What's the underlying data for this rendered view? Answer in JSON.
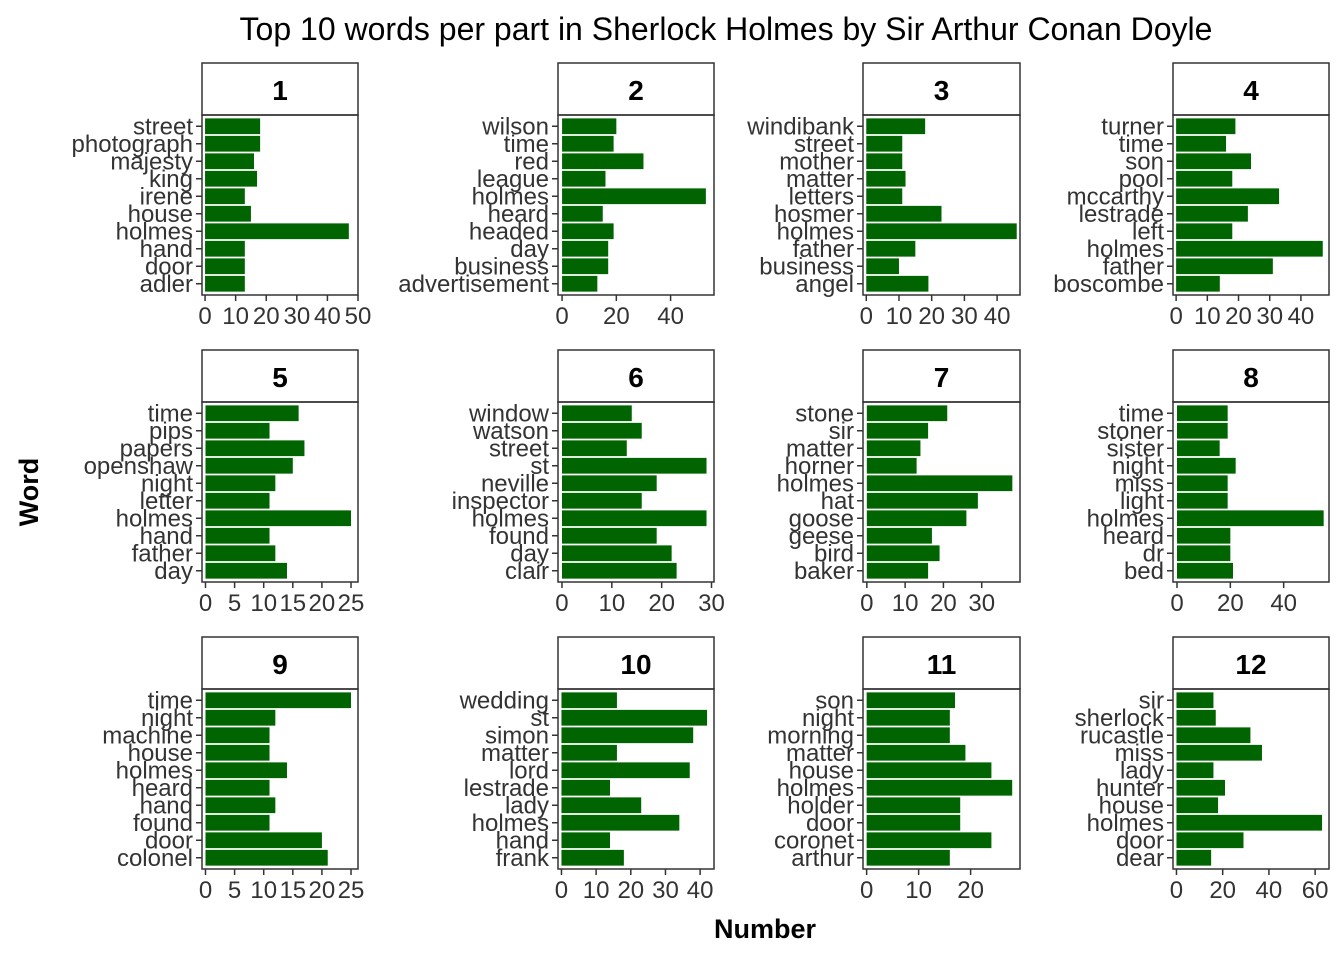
{
  "chart_data": {
    "type": "bar",
    "orientation": "horizontal",
    "facet_layout": "3 rows x 4 columns",
    "title": "Top 10 words per part in Sherlock Holmes by Sir Arthur Conan Doyle",
    "xlabel": "Number",
    "ylabel": "Word",
    "bar_color": "#006400",
    "grid": false,
    "panels": [
      {
        "part": "1",
        "xticks": [
          0,
          10,
          20,
          30,
          40,
          50
        ],
        "xlim": [
          -1,
          50
        ],
        "words": [
          "street",
          "photograph",
          "majesty",
          "king",
          "irene",
          "house",
          "holmes",
          "hand",
          "door",
          "adler"
        ],
        "values": [
          18,
          18,
          16,
          17,
          13,
          15,
          47,
          13,
          13,
          13
        ]
      },
      {
        "part": "2",
        "xticks": [
          0,
          20,
          40
        ],
        "xlim": [
          -1.5,
          56
        ],
        "words": [
          "wilson",
          "time",
          "red",
          "league",
          "holmes",
          "heard",
          "headed",
          "day",
          "business",
          "advertisement"
        ],
        "values": [
          20,
          19,
          30,
          16,
          53,
          15,
          19,
          17,
          17,
          13
        ]
      },
      {
        "part": "3",
        "xticks": [
          0,
          10,
          20,
          30,
          40
        ],
        "xlim": [
          -1,
          47
        ],
        "words": [
          "windibank",
          "street",
          "mother",
          "matter",
          "letters",
          "hosmer",
          "holmes",
          "father",
          "business",
          "angel"
        ],
        "values": [
          18,
          11,
          11,
          12,
          11,
          23,
          46,
          15,
          10,
          19
        ]
      },
      {
        "part": "4",
        "xticks": [
          0,
          10,
          20,
          30,
          40
        ],
        "xlim": [
          -1,
          49
        ],
        "words": [
          "turner",
          "time",
          "son",
          "pool",
          "mccarthy",
          "lestrade",
          "left",
          "holmes",
          "father",
          "boscombe"
        ],
        "values": [
          19,
          16,
          24,
          18,
          33,
          23,
          18,
          47,
          31,
          14
        ]
      },
      {
        "part": "5",
        "xticks": [
          0,
          5,
          10,
          15,
          20,
          25
        ],
        "xlim": [
          -0.6,
          26.2
        ],
        "words": [
          "time",
          "pips",
          "papers",
          "openshaw",
          "night",
          "letter",
          "holmes",
          "hand",
          "father",
          "day"
        ],
        "values": [
          16,
          11,
          17,
          15,
          12,
          11,
          25,
          11,
          12,
          14
        ]
      },
      {
        "part": "6",
        "xticks": [
          0,
          10,
          20,
          30
        ],
        "xlim": [
          -0.8,
          30.5
        ],
        "words": [
          "window",
          "watson",
          "street",
          "st",
          "neville",
          "inspector",
          "holmes",
          "found",
          "day",
          "clair"
        ],
        "values": [
          14,
          16,
          13,
          29,
          19,
          16,
          29,
          19,
          22,
          23
        ]
      },
      {
        "part": "7",
        "xticks": [
          0,
          10,
          20,
          30
        ],
        "xlim": [
          -1,
          40
        ],
        "words": [
          "stone",
          "sir",
          "matter",
          "horner",
          "holmes",
          "hat",
          "goose",
          "geese",
          "bird",
          "baker"
        ],
        "values": [
          21,
          16,
          14,
          13,
          38,
          29,
          26,
          17,
          19,
          16
        ]
      },
      {
        "part": "8",
        "xticks": [
          0,
          20,
          40
        ],
        "xlim": [
          -1.5,
          57
        ],
        "words": [
          "time",
          "stoner",
          "sister",
          "night",
          "miss",
          "light",
          "holmes",
          "heard",
          "dr",
          "bed"
        ],
        "values": [
          19,
          19,
          16,
          22,
          19,
          19,
          55,
          20,
          20,
          21
        ]
      },
      {
        "part": "9",
        "xticks": [
          0,
          5,
          10,
          15,
          20,
          25
        ],
        "xlim": [
          -0.6,
          26.2
        ],
        "words": [
          "time",
          "night",
          "machine",
          "house",
          "holmes",
          "heard",
          "hand",
          "found",
          "door",
          "colonel"
        ],
        "values": [
          25,
          12,
          11,
          11,
          14,
          11,
          12,
          11,
          20,
          21
        ]
      },
      {
        "part": "10",
        "xticks": [
          0,
          10,
          20,
          30,
          40
        ],
        "xlim": [
          -1,
          44
        ],
        "words": [
          "wedding",
          "st",
          "simon",
          "matter",
          "lord",
          "lestrade",
          "lady",
          "holmes",
          "hand",
          "frank"
        ],
        "values": [
          16,
          42,
          38,
          16,
          37,
          14,
          23,
          34,
          14,
          18
        ]
      },
      {
        "part": "11",
        "xticks": [
          0,
          10,
          20
        ],
        "xlim": [
          -0.7,
          29.5
        ],
        "words": [
          "son",
          "night",
          "morning",
          "matter",
          "house",
          "holmes",
          "holder",
          "door",
          "coronet",
          "arthur"
        ],
        "values": [
          17,
          16,
          16,
          19,
          24,
          28,
          18,
          18,
          24,
          16
        ]
      },
      {
        "part": "12",
        "xticks": [
          0,
          20,
          40,
          60
        ],
        "xlim": [
          -1.5,
          66
        ],
        "words": [
          "sir",
          "sherlock",
          "rucastle",
          "miss",
          "lady",
          "hunter",
          "house",
          "holmes",
          "door",
          "dear"
        ],
        "values": [
          16,
          17,
          32,
          37,
          16,
          21,
          18,
          63,
          29,
          15
        ]
      }
    ]
  }
}
